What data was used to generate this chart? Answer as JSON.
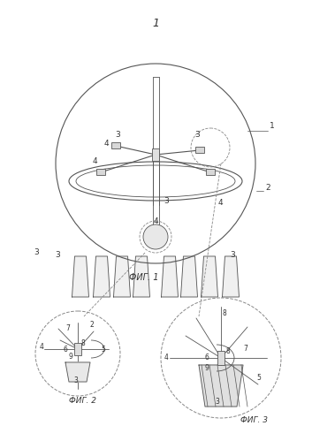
{
  "bg_color": "#ffffff",
  "line_color": "#555555",
  "dashed_color": "#888888",
  "text_color": "#333333",
  "fig_width": 3.53,
  "fig_height": 4.99,
  "title_text": "1",
  "fig1_label": "ФИГ. 1",
  "fig2_label": "ФИГ. 2",
  "fig3_label": "ФИГ. 3"
}
